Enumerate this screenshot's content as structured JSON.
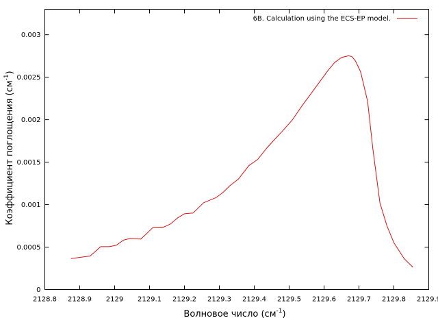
{
  "chart_data": {
    "type": "line",
    "title": "",
    "xlabel": "Волновое число (см",
    "xlabel_sup": "-1",
    "xlabel_end": ")",
    "ylabel": "Коэффициент поглощения (см",
    "ylabel_sup": "-1",
    "ylabel_end": ")",
    "xlim": [
      2128.8,
      2129.9
    ],
    "ylim": [
      0,
      0.0033
    ],
    "xticks": [
      2128.8,
      2128.9,
      2129.0,
      2129.1,
      2129.2,
      2129.3,
      2129.4,
      2129.5,
      2129.6,
      2129.7,
      2129.8,
      2129.9
    ],
    "xtick_labels": [
      "2128.8",
      "2128.9",
      "2129",
      "2129.1",
      "2129.2",
      "2129.3",
      "2129.4",
      "2129.5",
      "2129.6",
      "2129.7",
      "2129.8",
      "2129.9"
    ],
    "yticks": [
      0,
      0.0005,
      0.001,
      0.0015,
      0.002,
      0.0025,
      0.003
    ],
    "ytick_labels": [
      "0",
      "0.0005",
      "0.001",
      "0.0015",
      "0.002",
      "0.0025",
      "0.003"
    ],
    "grid": false,
    "legend_position": "top-right",
    "series": [
      {
        "name": "6B. Calculation using the ECS-EP model.",
        "color": "#dd1111",
        "x": [
          2128.875,
          2128.93,
          2128.96,
          2128.985,
          2129.005,
          2129.025,
          2129.045,
          2129.075,
          2129.09,
          2129.11,
          2129.14,
          2129.16,
          2129.18,
          2129.2,
          2129.225,
          2129.255,
          2129.29,
          2129.31,
          2129.33,
          2129.355,
          2129.385,
          2129.41,
          2129.435,
          2129.455,
          2129.48,
          2129.51,
          2129.535,
          2129.56,
          2129.585,
          2129.61,
          2129.63,
          2129.65,
          2129.67,
          2129.68,
          2129.69,
          2129.705,
          2129.725,
          2129.74,
          2129.76,
          2129.78,
          2129.8,
          2129.83,
          2129.855
        ],
        "y": [
          0.000365,
          0.000395,
          0.000505,
          0.000505,
          0.000522,
          0.000582,
          0.000602,
          0.000595,
          0.000652,
          0.000732,
          0.000735,
          0.000772,
          0.000842,
          0.000892,
          0.000902,
          0.001022,
          0.001082,
          0.001142,
          0.001222,
          0.001302,
          0.001462,
          0.001532,
          0.001662,
          0.001752,
          0.001862,
          0.002002,
          0.002152,
          0.002292,
          0.002432,
          0.002572,
          0.002672,
          0.002732,
          0.002752,
          0.002742,
          0.002692,
          0.002562,
          0.002212,
          0.001652,
          0.001022,
          0.000752,
          0.000552,
          0.000362,
          0.000262
        ]
      }
    ]
  }
}
